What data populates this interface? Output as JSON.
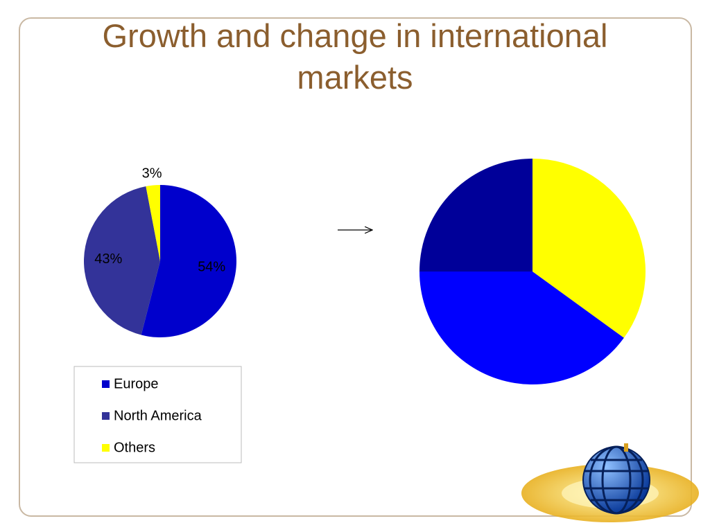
{
  "slide": {
    "title": "Growth and change in international markets"
  },
  "chart_data": [
    {
      "type": "pie",
      "categories": [
        "Europe",
        "North America",
        "Others"
      ],
      "values": [
        54,
        43,
        3
      ],
      "value_labels": [
        "54%",
        "43%",
        "3%"
      ],
      "colors": [
        "#0000cc",
        "#333399",
        "#ffff00"
      ],
      "legend": "bottom"
    },
    {
      "type": "pie",
      "categories": [
        null,
        null,
        null
      ],
      "values": [
        35,
        40,
        25
      ],
      "colors": [
        "#ffff00",
        "#0000ff",
        "#000099"
      ]
    }
  ]
}
